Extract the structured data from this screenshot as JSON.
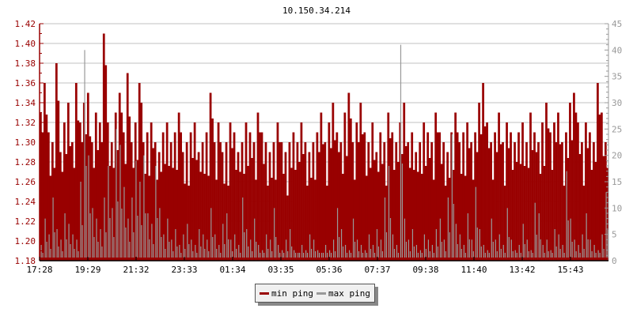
{
  "chart_data": {
    "type": "bar",
    "title": "10.150.34.214",
    "x_ticks": [
      "17:28",
      "19:29",
      "21:32",
      "23:33",
      "01:34",
      "03:35",
      "05:36",
      "07:37",
      "09:38",
      "11:40",
      "13:42",
      "15:43"
    ],
    "y_left": {
      "ylim": [
        1.18,
        1.42
      ],
      "ticks": [
        "1.18",
        "1.20",
        "1.22",
        "1.24",
        "1.26",
        "1.28",
        "1.30",
        "1.32",
        "1.34",
        "1.36",
        "1.38",
        "1.40",
        "1.42"
      ],
      "color": "#990000"
    },
    "y_right": {
      "ylim": [
        0,
        45
      ],
      "ticks": [
        "0",
        "5",
        "10",
        "15",
        "20",
        "25",
        "30",
        "35",
        "40",
        "45"
      ],
      "color": "#999999"
    },
    "grid": true,
    "legend_placement": "bottom-center",
    "series": [
      {
        "name": "min ping",
        "axis": "left",
        "color": "#990000",
        "values": [
          1.33,
          1.36,
          1.31,
          1.3,
          1.38,
          1.29,
          1.32,
          1.34,
          1.3,
          1.36,
          1.32,
          1.34,
          1.35,
          1.3,
          1.33,
          1.32,
          1.41,
          1.32,
          1.3,
          1.33,
          1.35,
          1.31,
          1.37,
          1.3,
          1.32,
          1.36,
          1.3,
          1.31,
          1.32,
          1.3,
          1.29,
          1.31,
          1.32,
          1.3,
          1.31,
          1.33,
          1.29,
          1.3,
          1.31,
          1.32,
          1.29,
          1.3,
          1.31,
          1.35,
          1.3,
          1.32,
          1.29,
          1.3,
          1.32,
          1.31,
          1.29,
          1.3,
          1.32,
          1.31,
          1.3,
          1.33,
          1.31,
          1.3,
          1.29,
          1.3,
          1.32,
          1.3,
          1.29,
          1.3,
          1.31,
          1.3,
          1.32,
          1.3,
          1.29,
          1.3,
          1.31,
          1.33,
          1.3,
          1.32,
          1.34,
          1.31,
          1.3,
          1.33,
          1.35,
          1.3,
          1.32,
          1.34,
          1.31,
          1.3,
          1.32,
          1.29,
          1.31,
          1.3,
          1.33,
          1.31,
          1.3,
          1.32,
          1.34,
          1.3,
          1.31,
          1.29,
          1.3,
          1.32,
          1.31,
          1.3,
          1.33,
          1.31,
          1.3,
          1.29,
          1.31,
          1.33,
          1.3,
          1.31,
          1.32,
          1.3,
          1.31,
          1.34,
          1.36,
          1.32,
          1.3,
          1.31,
          1.33,
          1.3,
          1.32,
          1.31,
          1.3,
          1.31,
          1.32,
          1.3,
          1.33,
          1.31,
          1.3,
          1.32,
          1.34,
          1.31,
          1.32,
          1.33,
          1.3,
          1.31,
          1.34,
          1.35,
          1.32,
          1.3,
          1.32,
          1.31,
          1.3,
          1.36,
          1.33,
          1.3
        ]
      },
      {
        "name": "max ping",
        "axis": "right",
        "color": "#999999",
        "values": [
          3,
          8,
          5,
          12,
          6,
          4,
          9,
          7,
          5,
          4,
          15,
          40,
          20,
          10,
          8,
          6,
          12,
          18,
          10,
          25,
          22,
          14,
          8,
          12,
          19,
          15,
          20,
          9,
          7,
          18,
          10,
          5,
          8,
          4,
          6,
          3,
          5,
          7,
          4,
          3,
          6,
          5,
          4,
          10,
          5,
          3,
          7,
          9,
          4,
          5,
          3,
          12,
          6,
          4,
          8,
          3,
          2,
          5,
          4,
          10,
          3,
          2,
          4,
          6,
          2,
          1.5,
          3,
          2,
          5,
          4,
          2,
          1.5,
          3,
          2,
          4,
          10,
          6,
          3,
          2,
          8,
          4,
          3,
          2,
          5,
          3,
          6,
          4,
          12,
          18,
          5,
          3,
          41,
          8,
          4,
          6,
          3,
          2,
          5,
          4,
          3,
          6,
          8,
          4,
          12,
          24,
          7,
          5,
          3,
          9,
          4,
          14,
          6,
          3,
          2,
          8,
          4,
          5,
          3,
          10,
          4,
          2,
          3,
          7,
          4,
          2,
          11,
          9,
          3,
          4,
          2,
          6,
          5,
          3,
          17,
          8,
          4,
          3,
          5,
          9,
          4,
          3,
          2,
          5,
          13
        ]
      }
    ]
  }
}
